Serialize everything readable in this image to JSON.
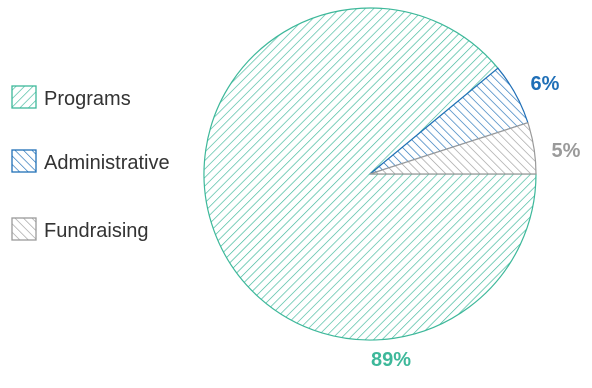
{
  "chart_data": {
    "type": "pie",
    "title": "",
    "legend": "left",
    "slices": [
      {
        "label": "Programs",
        "value": 89,
        "display": "89%",
        "color": "#3db89a",
        "hatch": "forward"
      },
      {
        "label": "Administrative",
        "value": 6,
        "display": "6%",
        "color": "#1f6fb7",
        "hatch": "backward"
      },
      {
        "label": "Fundraising",
        "value": 5,
        "display": "5%",
        "color": "#9a9a9a",
        "hatch": "backward"
      }
    ]
  }
}
